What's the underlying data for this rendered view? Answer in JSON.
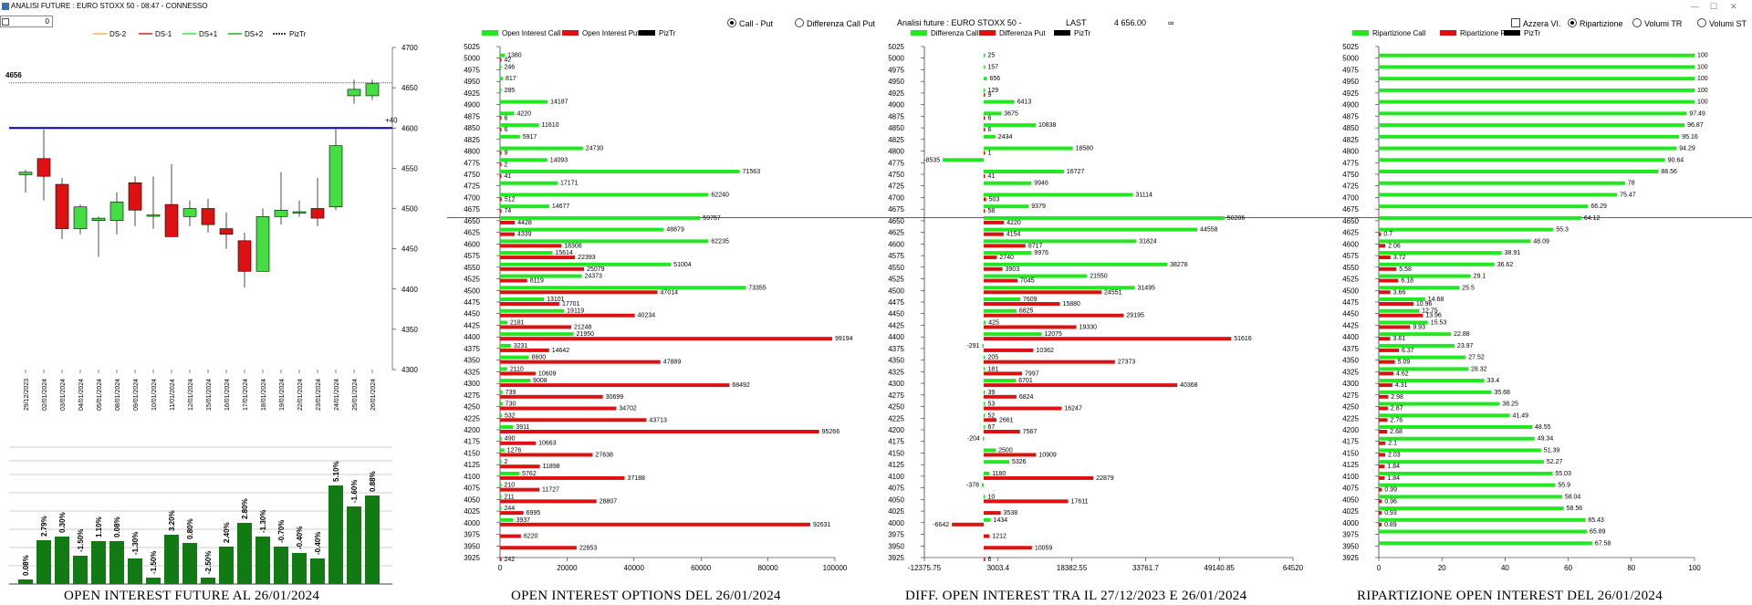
{
  "window": {
    "title": "ANALISI FUTURE : EURO STOXX 50 - 08:47 - CONNESSO"
  },
  "spinner": {
    "value": "0"
  },
  "colors": {
    "call": "#22e822",
    "put": "#dd1111",
    "candle_up": "#44dd44",
    "candle_down": "#dd1111",
    "ref_line": "#0000aa",
    "vol_bar": "#127a12"
  },
  "panel_options": {
    "radio_call_put": "Call - Put",
    "radio_diff": "Differenza Call Put"
  },
  "panel_diff": {
    "header": "Analisi future : EURO STOXX 50 -",
    "last_label": "LAST",
    "last_value": "4 656.00",
    "extra_symbol": "∞"
  },
  "panel_rip": {
    "check_azzera": "Azzera VI.",
    "radio_ripartizione": "Ripartizione",
    "radio_volumi_tr": "Volumi TR",
    "radio_volumi_st": "Volumi ST"
  },
  "titles": {
    "future": "OPEN INTEREST FUTURE AL 26/01/2024",
    "options": "OPEN INTEREST OPTIONS DEL 26/01/2024",
    "diff": "DIFF. OPEN INTEREST TRA IL 27/12/2023 E 26/01/2024",
    "rip": "RIPARTIZIONE OPEN INTEREST DEL 26/01/2024"
  },
  "chart_data": [
    {
      "type": "candlestick",
      "legend": [
        "DS-2",
        "DS-1",
        "DS+1",
        "DS+2",
        "PizTr"
      ],
      "ylim": [
        4300,
        4700
      ],
      "y_ticks": [
        4300,
        4350,
        4400,
        4450,
        4500,
        4550,
        4600,
        4650,
        4700
      ],
      "ref_line": {
        "value": 4600,
        "label": "+40"
      },
      "last_value": 4656,
      "categories": [
        "29/12/2023",
        "02/01/2024",
        "03/01/2024",
        "04/01/2024",
        "05/01/2024",
        "08/01/2024",
        "09/01/2024",
        "10/01/2024",
        "11/01/2024",
        "12/01/2024",
        "15/01/2024",
        "16/01/2024",
        "17/01/2024",
        "18/01/2024",
        "19/01/2024",
        "22/01/2024",
        "23/01/2024",
        "24/01/2024",
        "25/01/2024",
        "26/01/2024"
      ],
      "candles": [
        {
          "open": 4542,
          "high": 4548,
          "low": 4520,
          "close": 4545
        },
        {
          "open": 4562,
          "high": 4598,
          "low": 4510,
          "close": 4540
        },
        {
          "open": 4530,
          "high": 4538,
          "low": 4462,
          "close": 4475
        },
        {
          "open": 4475,
          "high": 4505,
          "low": 4468,
          "close": 4502
        },
        {
          "open": 4485,
          "high": 4490,
          "low": 4440,
          "close": 4488
        },
        {
          "open": 4485,
          "high": 4520,
          "low": 4468,
          "close": 4508
        },
        {
          "open": 4532,
          "high": 4540,
          "low": 4478,
          "close": 4498
        },
        {
          "open": 4492,
          "high": 4540,
          "low": 4475,
          "close": 4492
        },
        {
          "open": 4505,
          "high": 4555,
          "low": 4465,
          "close": 4465
        },
        {
          "open": 4490,
          "high": 4510,
          "low": 4478,
          "close": 4500
        },
        {
          "open": 4500,
          "high": 4512,
          "low": 4470,
          "close": 4480
        },
        {
          "open": 4475,
          "high": 4495,
          "low": 4450,
          "close": 4468
        },
        {
          "open": 4460,
          "high": 4470,
          "low": 4402,
          "close": 4422
        },
        {
          "open": 4422,
          "high": 4500,
          "low": 4422,
          "close": 4490
        },
        {
          "open": 4490,
          "high": 4545,
          "low": 4480,
          "close": 4498
        },
        {
          "open": 4496,
          "high": 4510,
          "low": 4490,
          "close": 4496
        },
        {
          "open": 4500,
          "high": 4538,
          "low": 4478,
          "close": 4488
        },
        {
          "open": 4502,
          "high": 4600,
          "low": 4498,
          "close": 4578
        },
        {
          "open": 4640,
          "high": 4660,
          "low": 4630,
          "close": 4648
        },
        {
          "open": 4640,
          "high": 4660,
          "low": 4635,
          "close": 4655
        }
      ]
    },
    {
      "type": "bar",
      "title": "OPEN INTEREST FUTURE AL 26/01/2024",
      "values": [
        0.08,
        2.79,
        0.3,
        -1.5,
        1.1,
        0.08,
        -1.3,
        -1.5,
        3.2,
        0.8,
        -2.5,
        2.4,
        2.8,
        -1.3,
        -0.7,
        -0.4,
        -0.4,
        5.1,
        -1.6,
        0.88
      ],
      "labels": [
        "0.08%",
        "2.79%",
        "0.30%",
        "-1.50%",
        "1.10%",
        "0.08%",
        "-1.30%",
        "-1.50%",
        "3.20%",
        "0.80%",
        "-2.50%",
        "2.40%",
        "2.80%",
        "-1.30%",
        "-0.70%",
        "-0.40%",
        "-0.40%",
        "5.10%",
        "-1.60%",
        "0.88%"
      ],
      "heights_scale": [
        5,
        48,
        52,
        31,
        47,
        47,
        28,
        7,
        54,
        45,
        7,
        41,
        67,
        52,
        41,
        34,
        28,
        108,
        85,
        97
      ]
    },
    {
      "type": "bar",
      "orientation": "horizontal",
      "title": "OPEN INTEREST OPTIONS DEL 26/01/2024",
      "legend": [
        "Open Interest Call",
        "Open Interest Put",
        "PizTr"
      ],
      "xlim": [
        0,
        100000
      ],
      "x_ticks": [
        0,
        20000,
        40000,
        60000,
        80000,
        100000
      ],
      "categories": [
        "5025",
        "5000",
        "4975",
        "4950",
        "4925",
        "4900",
        "4875",
        "4850",
        "4825",
        "4800",
        "4775",
        "4750",
        "4725",
        "4700",
        "4675",
        "4650",
        "4625",
        "4600",
        "4575",
        "4550",
        "4525",
        "4500",
        "4475",
        "4450",
        "4425",
        "4400",
        "4375",
        "4350",
        "4325",
        "4300",
        "4275",
        "4250",
        "4225",
        "4200",
        "4175",
        "4150",
        "4125",
        "4100",
        "4075",
        "4050",
        "4025",
        "4000",
        "3975",
        "3950",
        "3925"
      ],
      "series": [
        {
          "name": "Open Interest Call",
          "values": [
            null,
            1380,
            246,
            817,
            285,
            14187,
            4220,
            11610,
            5917,
            24730,
            14093,
            71563,
            17171,
            62240,
            14677,
            59757,
            48879,
            62235,
            15614,
            51004,
            24373,
            73355,
            13101,
            19119,
            2181,
            21950,
            3231,
            8600,
            2110,
            9008,
            739,
            730,
            532,
            3911,
            490,
            1276,
            2,
            5762,
            210,
            211,
            244,
            3937,
            null,
            null,
            null
          ]
        },
        {
          "name": "Open Interest Put",
          "values": [
            null,
            42,
            null,
            null,
            null,
            null,
            6,
            6,
            null,
            9,
            2,
            41,
            null,
            512,
            74,
            4428,
            4339,
            18308,
            22393,
            25079,
            8119,
            47014,
            17701,
            40234,
            21248,
            99194,
            14642,
            47889,
            10609,
            68492,
            30699,
            34702,
            43713,
            95266,
            10663,
            27638,
            11898,
            37188,
            11727,
            28807,
            6995,
            92631,
            6220,
            22853,
            242
          ]
        }
      ]
    },
    {
      "type": "bar",
      "orientation": "horizontal",
      "title": "DIFF. OPEN INTEREST TRA IL 27/12/2023 E 26/01/2024",
      "legend": [
        "Differenza Call",
        "Differenza Put",
        "PizTr"
      ],
      "xlim": [
        -12375.75,
        64520
      ],
      "x_ticks": [
        -12375.75,
        3003.4,
        18382.55,
        33761.7,
        49140.85,
        64520
      ],
      "x_tick_labels": [
        "-12375.75",
        "3003.4",
        "18382.55",
        "33761.7",
        "49140.85",
        "64520"
      ],
      "categories": [
        "5025",
        "5000",
        "4975",
        "4950",
        "4925",
        "4900",
        "4875",
        "4850",
        "4825",
        "4800",
        "4775",
        "4750",
        "4725",
        "4700",
        "4675",
        "4650",
        "4625",
        "4600",
        "4575",
        "4550",
        "4525",
        "4500",
        "4475",
        "4450",
        "4425",
        "4400",
        "4375",
        "4350",
        "4325",
        "4300",
        "4275",
        "4250",
        "4225",
        "4200",
        "4175",
        "4150",
        "4125",
        "4100",
        "4075",
        "4050",
        "4025",
        "4000",
        "3975",
        "3950",
        "3925"
      ],
      "series": [
        {
          "name": "Differenza Call",
          "values": [
            null,
            25,
            157,
            656,
            129,
            6413,
            3675,
            10838,
            2434,
            18580,
            -8535,
            16727,
            9946,
            31114,
            9379,
            50206,
            44558,
            31824,
            9976,
            38278,
            21550,
            31495,
            7609,
            6825,
            425,
            12075,
            -291,
            205,
            181,
            6701,
            39,
            53,
            52,
            67,
            -204,
            2500,
            5326,
            1180,
            -378,
            10,
            null,
            1434,
            null,
            null,
            null
          ]
        },
        {
          "name": "Differenza Put",
          "values": [
            null,
            null,
            null,
            null,
            9,
            null,
            6,
            6,
            null,
            1,
            null,
            41,
            null,
            503,
            58,
            4220,
            4154,
            8717,
            2740,
            3903,
            7045,
            24551,
            15880,
            29195,
            19330,
            51616,
            10362,
            27373,
            7997,
            40368,
            6824,
            16247,
            2661,
            7567,
            null,
            10909,
            null,
            22879,
            null,
            17611,
            3538,
            -6642,
            1212,
            10059,
            6
          ]
        }
      ]
    },
    {
      "type": "bar",
      "orientation": "horizontal",
      "title": "RIPARTIZIONE OPEN INTEREST DEL 26/01/2024",
      "legend": [
        "Ripartizione Call",
        "Ripartizione Put",
        "PizTr"
      ],
      "xlim": [
        0,
        100
      ],
      "x_ticks": [
        0,
        20,
        40,
        60,
        80,
        100
      ],
      "categories": [
        "5025",
        "5000",
        "4975",
        "4950",
        "4925",
        "4900",
        "4875",
        "4850",
        "4825",
        "4800",
        "4775",
        "4750",
        "4725",
        "4700",
        "4675",
        "4650",
        "4625",
        "4600",
        "4575",
        "4550",
        "4525",
        "4500",
        "4475",
        "4450",
        "4425",
        "4400",
        "4375",
        "4350",
        "4325",
        "4300",
        "4275",
        "4250",
        "4225",
        "4200",
        "4175",
        "4150",
        "4125",
        "4100",
        "4075",
        "4050",
        "4025",
        "4000",
        "3975",
        "3950",
        "3925"
      ],
      "series": [
        {
          "name": "Ripartizione Call",
          "values": [
            null,
            100,
            100,
            100,
            100,
            100,
            97.49,
            96.87,
            95.16,
            94.29,
            90.64,
            88.56,
            78,
            75.47,
            66.29,
            64.12,
            55.3,
            48.09,
            38.91,
            36.62,
            29.1,
            25.5,
            14.68,
            12.75,
            15.53,
            22.88,
            23.97,
            27.52,
            28.32,
            33.4,
            35.68,
            38.25,
            41.49,
            48.55,
            49.34,
            51.39,
            52.27,
            55.03,
            55.9,
            58.04,
            58.56,
            65.43,
            65.89,
            67.58,
            null
          ]
        },
        {
          "name": "Ripartizione Put",
          "values": [
            null,
            null,
            null,
            null,
            null,
            null,
            null,
            null,
            null,
            null,
            null,
            null,
            null,
            null,
            null,
            null,
            0.7,
            2.06,
            3.72,
            5.58,
            6.18,
            3.66,
            10.96,
            13.96,
            9.93,
            3.61,
            6.37,
            5.09,
            4.62,
            4.31,
            2.98,
            2.87,
            2.76,
            2.68,
            2.1,
            2.03,
            1.84,
            1.84,
            0.99,
            0.96,
            0.93,
            0.89,
            null,
            null,
            null
          ]
        }
      ]
    }
  ]
}
